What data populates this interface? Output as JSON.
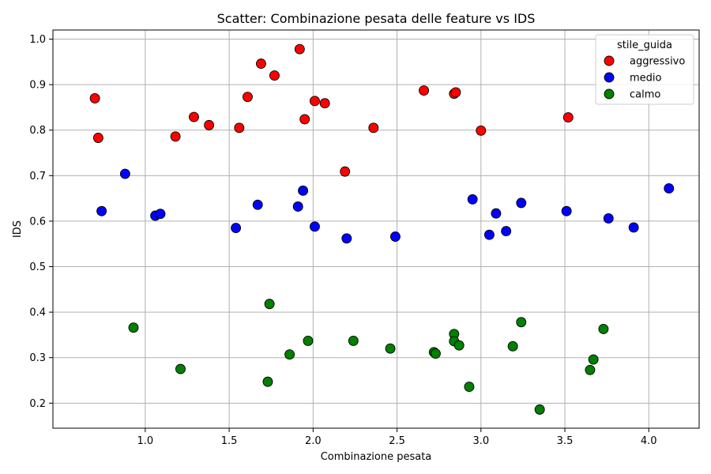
{
  "chart_data": {
    "type": "scatter",
    "title": "Scatter: Combinazione pesata delle feature vs IDS",
    "xlabel": "Combinazione pesata",
    "ylabel": "IDS",
    "xlim": [
      0.45,
      4.3
    ],
    "ylim": [
      0.145,
      1.02
    ],
    "x_ticks": [
      1.0,
      1.5,
      2.0,
      2.5,
      3.0,
      3.5,
      4.0
    ],
    "x_tick_labels": [
      "1.0",
      "1.5",
      "2.0",
      "2.5",
      "3.0",
      "3.5",
      "4.0"
    ],
    "y_ticks": [
      0.2,
      0.3,
      0.4,
      0.5,
      0.6,
      0.7,
      0.8,
      0.9,
      1.0
    ],
    "y_tick_labels": [
      "0.2",
      "0.3",
      "0.4",
      "0.5",
      "0.6",
      "0.7",
      "0.8",
      "0.9",
      "1.0"
    ],
    "grid": true,
    "legend": {
      "title": "stile_guida",
      "position": "top-right"
    },
    "series": [
      {
        "name": "aggressivo",
        "color": "#ff0000",
        "points": [
          [
            0.7,
            0.87
          ],
          [
            0.72,
            0.783
          ],
          [
            1.18,
            0.786
          ],
          [
            1.29,
            0.829
          ],
          [
            1.38,
            0.811
          ],
          [
            1.56,
            0.805
          ],
          [
            1.61,
            0.873
          ],
          [
            1.69,
            0.946
          ],
          [
            1.77,
            0.92
          ],
          [
            1.92,
            0.978
          ],
          [
            1.95,
            0.824
          ],
          [
            2.01,
            0.864
          ],
          [
            2.07,
            0.859
          ],
          [
            2.19,
            0.709
          ],
          [
            2.36,
            0.805
          ],
          [
            2.66,
            0.887
          ],
          [
            2.84,
            0.88
          ],
          [
            2.85,
            0.883
          ],
          [
            3.0,
            0.799
          ],
          [
            3.52,
            0.828
          ]
        ]
      },
      {
        "name": "medio",
        "color": "#0000ff",
        "points": [
          [
            0.74,
            0.622
          ],
          [
            0.88,
            0.704
          ],
          [
            1.06,
            0.612
          ],
          [
            1.09,
            0.616
          ],
          [
            1.54,
            0.585
          ],
          [
            1.67,
            0.636
          ],
          [
            1.91,
            0.632
          ],
          [
            1.94,
            0.667
          ],
          [
            2.01,
            0.588
          ],
          [
            2.2,
            0.562
          ],
          [
            2.49,
            0.566
          ],
          [
            2.95,
            0.648
          ],
          [
            3.05,
            0.57
          ],
          [
            3.09,
            0.617
          ],
          [
            3.15,
            0.578
          ],
          [
            3.24,
            0.64
          ],
          [
            3.51,
            0.622
          ],
          [
            3.76,
            0.606
          ],
          [
            3.91,
            0.586
          ],
          [
            4.12,
            0.672
          ]
        ]
      },
      {
        "name": "calmo",
        "color": "#008000",
        "points": [
          [
            0.93,
            0.366
          ],
          [
            1.21,
            0.275
          ],
          [
            1.73,
            0.247
          ],
          [
            1.74,
            0.418
          ],
          [
            1.86,
            0.307
          ],
          [
            1.97,
            0.337
          ],
          [
            2.24,
            0.337
          ],
          [
            2.46,
            0.32
          ],
          [
            2.72,
            0.312
          ],
          [
            2.73,
            0.309
          ],
          [
            2.84,
            0.352
          ],
          [
            2.84,
            0.336
          ],
          [
            2.87,
            0.327
          ],
          [
            2.93,
            0.236
          ],
          [
            3.19,
            0.325
          ],
          [
            3.24,
            0.378
          ],
          [
            3.35,
            0.186
          ],
          [
            3.65,
            0.273
          ],
          [
            3.67,
            0.296
          ],
          [
            3.73,
            0.363
          ]
        ]
      }
    ]
  }
}
